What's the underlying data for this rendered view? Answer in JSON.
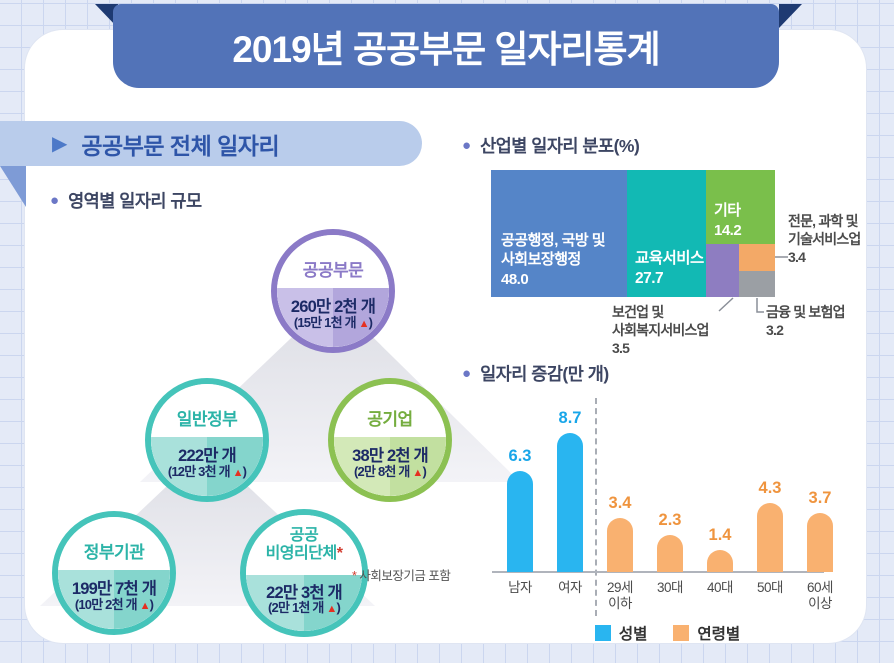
{
  "page_title": "2019년 공공부문 일자리통계",
  "left_section": {
    "header_label": "공공부문 전체 일자리",
    "subheading": "영역별 일자리 규모",
    "bubbles": [
      {
        "label": "공공부문",
        "mark": "",
        "value": "260만 2천 개",
        "delta_prefix": "(15만 1천 개 ",
        "arrow": "▲",
        "delta_suffix": ")",
        "theme_color": "#8b7ac7"
      },
      {
        "label": "일반정부",
        "mark": "",
        "value": "222만 개",
        "delta_prefix": "(12만 3천 개 ",
        "arrow": "▲",
        "delta_suffix": ")",
        "theme_color": "#45c4ba"
      },
      {
        "label": "공기업",
        "mark": "",
        "value": "38만 2천 개",
        "delta_prefix": "(2만 8천 개 ",
        "arrow": "▲",
        "delta_suffix": ")",
        "theme_color": "#8cc152"
      },
      {
        "label": "정부기관",
        "mark": "",
        "value": "199만 7천 개",
        "delta_prefix": "(10만 2천 개 ",
        "arrow": "▲",
        "delta_suffix": ")",
        "theme_color": "#45c4ba"
      },
      {
        "label": "공공\n비영리단체",
        "mark": "*",
        "value": "22만 3천 개",
        "delta_prefix": "(2만 1천 개 ",
        "arrow": "▲",
        "delta_suffix": ")",
        "theme_color": "#45c4ba"
      }
    ],
    "footnote_mark": "* ",
    "footnote_text": "사회보장기금 포함"
  },
  "right_section": {
    "industry_heading": "산업별 일자리 분포(%)",
    "change_heading": "일자리 증감(만 개)"
  },
  "chart_data": [
    {
      "type": "bar",
      "subtype": "proportional-composition-treemap",
      "title": "산업별 일자리 분포(%)",
      "unit": "%",
      "segments": [
        {
          "label": "공공행정, 국방 및\n사회보장행정",
          "value": 48.0,
          "value_text": "48.0",
          "color": "#5585c8",
          "label_position": "inside"
        },
        {
          "label": "교육서비스",
          "value": 27.7,
          "value_text": "27.7",
          "color": "#12b9b4",
          "label_position": "inside"
        },
        {
          "label": "기타",
          "value": 14.2,
          "value_text": "14.2",
          "color": "#7abf4b",
          "label_position": "inside"
        },
        {
          "label": "보건업 및\n사회복지서비스업",
          "value": 3.5,
          "value_text": "3.5",
          "color": "#8e7dc1",
          "label_position": "outside"
        },
        {
          "label": "전문, 과학 및\n기술서비스업",
          "value": 3.4,
          "value_text": "3.4",
          "color": "#f3a967",
          "label_position": "outside"
        },
        {
          "label": "금융 및 보험업",
          "value": 3.2,
          "value_text": "3.2",
          "color": "#9b9fa4",
          "label_position": "outside"
        }
      ]
    },
    {
      "type": "bar",
      "title": "일자리 증감(만 개)",
      "unit": "만 개",
      "categories": [
        "남자",
        "여자",
        "29세\n이하",
        "30대",
        "40대",
        "50대",
        "60세\n이상"
      ],
      "series": [
        {
          "name": "성별",
          "color": "#29b5f0",
          "label_color": "#18a6e9",
          "values": [
            6.3,
            8.7,
            null,
            null,
            null,
            null,
            null
          ]
        },
        {
          "name": "연령별",
          "color": "#f9b170",
          "label_color": "#ef943e",
          "values": [
            null,
            null,
            3.4,
            2.3,
            1.4,
            4.3,
            3.7
          ]
        }
      ],
      "legend": [
        {
          "label": "성별",
          "color": "#29b5f0"
        },
        {
          "label": "연령별",
          "color": "#f9b170"
        }
      ],
      "ylim": [
        0,
        10
      ],
      "grid": false,
      "legend_position": "bottom"
    }
  ]
}
